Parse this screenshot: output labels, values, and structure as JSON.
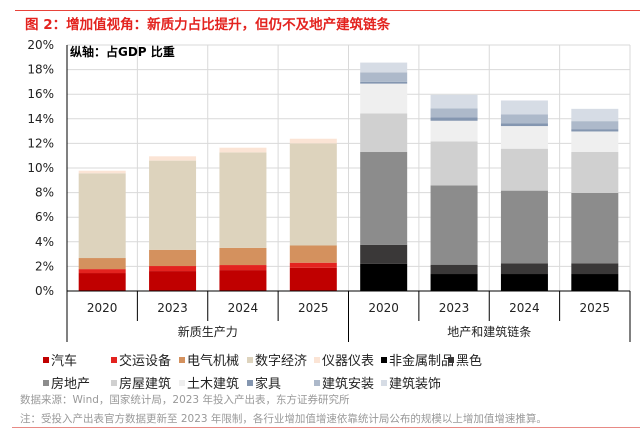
{
  "title": "图 2：增加值视角：新质力占比提升，但仍不及地产建筑链条",
  "source": "数据来源：Wind，国家统计局，2023 年投入产出表，东方证券研究所",
  "note": "注：受投入产出表官方数据更新至 2023 年限制，各行业增加值增速依靠统计局公布的规模以上增加值增速推算。",
  "chart_data": {
    "type": "bar",
    "stacked": true,
    "annotation": "纵轴：占GDP 比重",
    "ylim": [
      0,
      20
    ],
    "yticks": [
      "0%",
      "2%",
      "4%",
      "6%",
      "8%",
      "10%",
      "12%",
      "14%",
      "16%",
      "18%",
      "20%"
    ],
    "grid": true,
    "legend_position": "bottom",
    "categories": [
      "2020",
      "2023",
      "2024",
      "2025",
      "2020",
      "2023",
      "2024",
      "2025"
    ],
    "groups": [
      {
        "label": "新质生产力",
        "categories": [
          0,
          1,
          2,
          3
        ]
      },
      {
        "label": "地产和建筑链条",
        "categories": [
          4,
          5,
          6,
          7
        ]
      }
    ],
    "series": [
      {
        "name": "汽车",
        "color": "#c00000",
        "values": [
          1.46,
          1.62,
          1.7,
          1.89,
          0,
          0,
          0,
          0
        ]
      },
      {
        "name": "交运设备",
        "color": "#e3231f",
        "values": [
          0.32,
          0.41,
          0.41,
          0.41,
          0,
          0,
          0,
          0
        ]
      },
      {
        "name": "电气机械",
        "color": "#d4915e",
        "values": [
          0.9,
          1.32,
          1.4,
          1.4,
          0,
          0,
          0,
          0
        ]
      },
      {
        "name": "数字经济",
        "color": "#ddd3bd",
        "values": [
          6.89,
          7.25,
          7.76,
          8.3,
          0,
          0,
          0,
          0
        ]
      },
      {
        "name": "仪器仪表",
        "color": "#fbe4d5",
        "values": [
          0.21,
          0.35,
          0.38,
          0.38,
          0,
          0,
          0,
          0
        ]
      },
      {
        "name": "非金属制品",
        "color": "#000000",
        "values": [
          0,
          0,
          0,
          0,
          2.22,
          1.38,
          1.38,
          1.38
        ]
      },
      {
        "name": "黑色",
        "color": "#3a3838",
        "values": [
          0,
          0,
          0,
          0,
          1.54,
          0.76,
          0.86,
          0.86
        ]
      },
      {
        "name": "房地产",
        "color": "#8c8c8c",
        "values": [
          0,
          0,
          0,
          0,
          7.54,
          6.45,
          5.92,
          5.73
        ]
      },
      {
        "name": "房屋建筑",
        "color": "#d0d0d0",
        "values": [
          0,
          0,
          0,
          0,
          3.13,
          3.57,
          3.41,
          3.33
        ]
      },
      {
        "name": "土木建筑",
        "color": "#efefef",
        "values": [
          0,
          0,
          0,
          0,
          2.43,
          1.68,
          1.84,
          1.67
        ]
      },
      {
        "name": "家具",
        "color": "#8496b0",
        "values": [
          0,
          0,
          0,
          0,
          0.14,
          0.27,
          0.21,
          0.19
        ]
      },
      {
        "name": "建筑安装",
        "color": "#adb9ca",
        "values": [
          0,
          0,
          0,
          0,
          0.78,
          0.73,
          0.73,
          0.65
        ]
      },
      {
        "name": "建筑装饰",
        "color": "#d6dce5",
        "values": [
          0,
          0,
          0,
          0,
          0.79,
          1.11,
          1.14,
          1.0
        ]
      }
    ]
  }
}
